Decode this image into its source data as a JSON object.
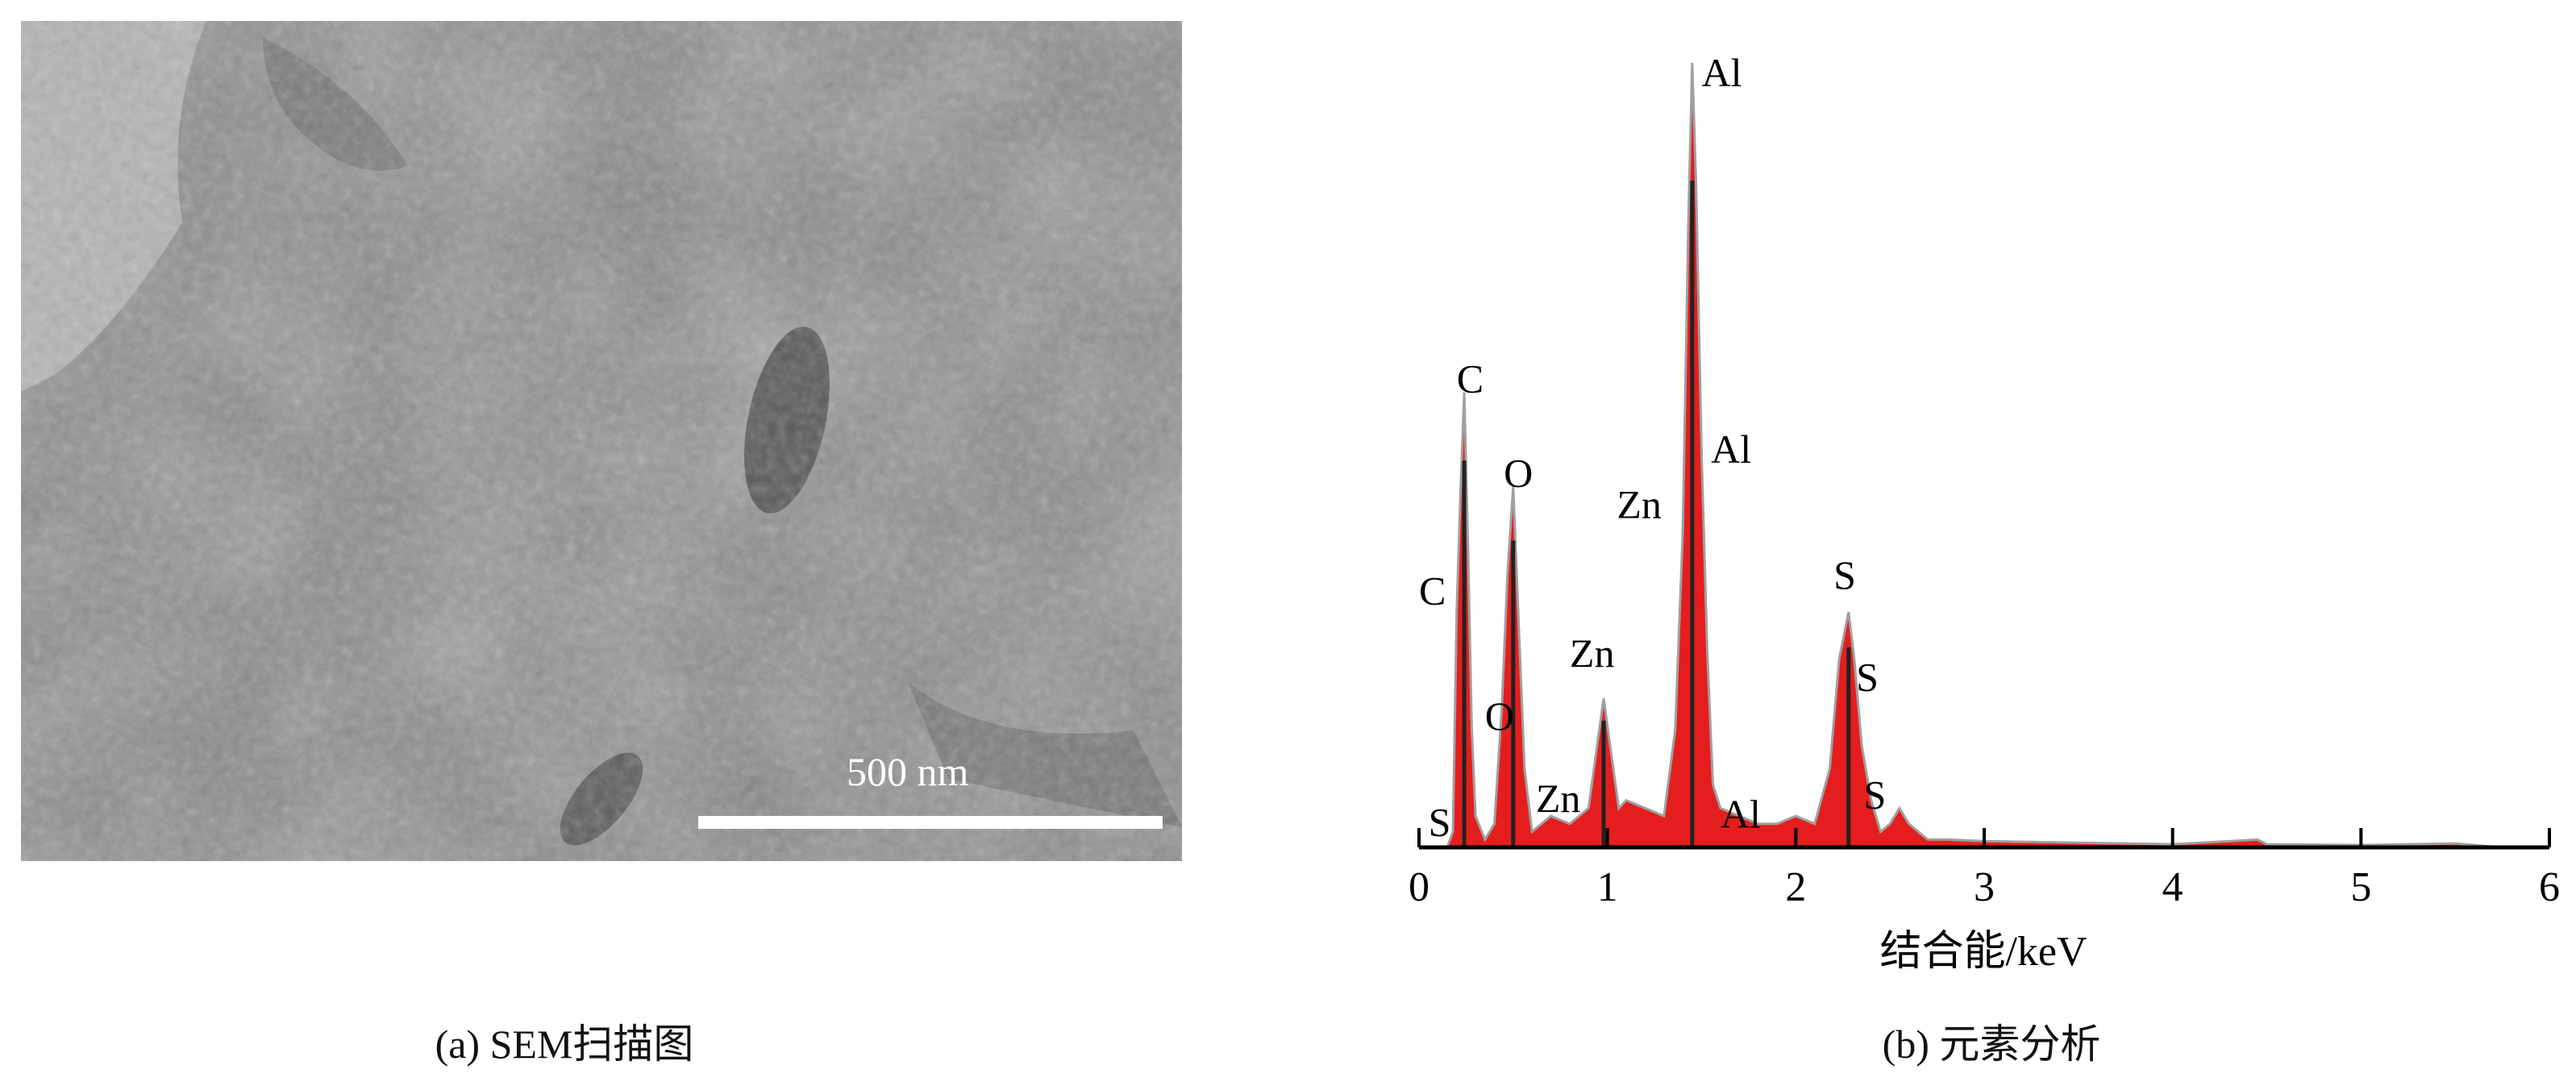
{
  "panel_a": {
    "caption": "(a) SEM扫描图",
    "scale_bar_label": "500 nm"
  },
  "panel_b": {
    "caption": "(b) 元素分析"
  },
  "chart_data": {
    "type": "area",
    "title": "",
    "xlabel": "结合能/keV",
    "ylabel": "",
    "xlim": [
      0,
      6
    ],
    "ylim": [
      0,
      100
    ],
    "x_ticks": [
      0,
      1,
      2,
      3,
      4,
      5,
      6
    ],
    "y_ticks": [],
    "grid": false,
    "colors": {
      "fill": "#e41e1e",
      "peak_line": "#222222"
    },
    "x": [
      0.15,
      0.18,
      0.2,
      0.22,
      0.24,
      0.26,
      0.28,
      0.3,
      0.35,
      0.4,
      0.44,
      0.47,
      0.5,
      0.53,
      0.56,
      0.6,
      0.65,
      0.7,
      0.8,
      0.9,
      0.94,
      0.98,
      1.02,
      1.06,
      1.1,
      1.2,
      1.3,
      1.36,
      1.4,
      1.43,
      1.45,
      1.47,
      1.5,
      1.53,
      1.56,
      1.6,
      1.7,
      1.8,
      1.9,
      2.0,
      2.1,
      2.18,
      2.23,
      2.28,
      2.31,
      2.35,
      2.4,
      2.45,
      2.5,
      2.55,
      2.6,
      2.7,
      2.8,
      3.0,
      3.5,
      4.0,
      4.45,
      4.5,
      5.0,
      5.5,
      5.75
    ],
    "y": [
      0,
      2,
      30,
      45,
      58,
      38,
      15,
      4,
      1,
      3,
      18,
      35,
      46,
      28,
      10,
      2,
      3,
      4,
      3,
      5,
      12,
      19,
      12,
      5,
      6,
      5,
      4,
      15,
      40,
      80,
      100,
      85,
      50,
      25,
      8,
      5,
      4,
      3,
      3,
      4,
      3,
      10,
      24,
      30,
      24,
      13,
      6,
      2,
      3,
      5,
      3,
      1,
      1,
      0.8,
      0.6,
      0.4,
      1,
      0.4,
      0.3,
      0.5,
      0
    ],
    "peak_lines": [
      0.24,
      0.5,
      0.98,
      1.45,
      2.28
    ],
    "annotations": [
      {
        "text": "Al",
        "x": 1.5,
        "y": 97
      },
      {
        "text": "Al",
        "x": 1.55,
        "y": 49
      },
      {
        "text": "Zn",
        "x": 1.05,
        "y": 42
      },
      {
        "text": "C",
        "x": 0.2,
        "y": 58
      },
      {
        "text": "O",
        "x": 0.45,
        "y": 46
      },
      {
        "text": "C",
        "x": 0.0,
        "y": 31
      },
      {
        "text": "Zn",
        "x": 0.8,
        "y": 23
      },
      {
        "text": "O",
        "x": 0.35,
        "y": 15
      },
      {
        "text": "S",
        "x": 2.2,
        "y": 33
      },
      {
        "text": "S",
        "x": 2.32,
        "y": 20
      },
      {
        "text": "Zn",
        "x": 0.62,
        "y": 4.5
      },
      {
        "text": "Al",
        "x": 1.6,
        "y": 2.5
      },
      {
        "text": "S",
        "x": 0.05,
        "y": 1.5
      },
      {
        "text": "S",
        "x": 2.36,
        "y": 5
      }
    ]
  }
}
